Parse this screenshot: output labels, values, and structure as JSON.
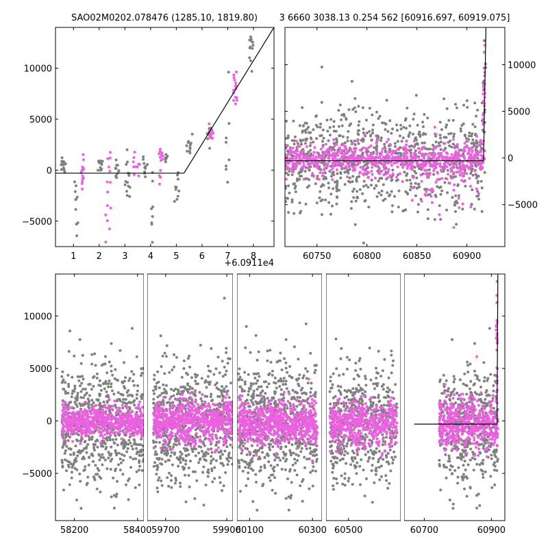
{
  "titles": {
    "left": "SAO02M0202.078476 (1285.10, 1819.80)",
    "right": "3 6660 3038.13 0.254 562 [60916.697, 60919.075]"
  },
  "colors": {
    "gray": "#808080",
    "magenta": "#ee5fe2",
    "model_line": "#000000"
  },
  "chart_data": [
    {
      "type": "scatter",
      "name_id": "top-left-zoom",
      "x_offset_label": "+6.0911e4",
      "xlim": [
        0.3,
        8.8
      ],
      "ylim": [
        -7500,
        14000
      ],
      "x_ticks": [
        1,
        2,
        3,
        4,
        5,
        6,
        7,
        8
      ],
      "y_ticks": [
        -5000,
        0,
        5000,
        10000
      ],
      "y_tick_labels": [
        "−5000",
        "0",
        "5000",
        "10000"
      ],
      "y_axis_side": "left",
      "model_line": [
        [
          0.3,
          -300
        ],
        [
          5.3,
          -300
        ],
        [
          8.8,
          14000
        ]
      ],
      "clusters": [
        {
          "x": 0.6,
          "w": 0.2,
          "ymean": 600,
          "sd": 500,
          "n": 14,
          "color": "gray"
        },
        {
          "x": 1.1,
          "w": 0.15,
          "ymean": -2500,
          "sd": 1500,
          "n": 10,
          "color": "gray"
        },
        {
          "x": 1.35,
          "w": 0.12,
          "ymean": -500,
          "sd": 1000,
          "n": 14,
          "color": "magenta"
        },
        {
          "x": 2.05,
          "w": 0.2,
          "ymean": 300,
          "sd": 400,
          "n": 10,
          "color": "gray"
        },
        {
          "x": 2.35,
          "w": 0.2,
          "ymean": -2000,
          "sd": 2500,
          "n": 14,
          "color": "magenta"
        },
        {
          "x": 2.7,
          "w": 0.15,
          "ymean": 0,
          "sd": 600,
          "n": 10,
          "color": "gray"
        },
        {
          "x": 3.1,
          "w": 0.2,
          "ymean": -1000,
          "sd": 1200,
          "n": 14,
          "color": "gray"
        },
        {
          "x": 3.45,
          "w": 0.25,
          "ymean": 500,
          "sd": 500,
          "n": 10,
          "color": "magenta"
        },
        {
          "x": 3.8,
          "w": 0.2,
          "ymean": 300,
          "sd": 500,
          "n": 10,
          "color": "gray"
        },
        {
          "x": 4.05,
          "w": 0.08,
          "ymean": -4000,
          "sd": 2000,
          "n": 8,
          "color": "gray"
        },
        {
          "x": 4.4,
          "w": 0.15,
          "ymean": 700,
          "sd": 900,
          "n": 14,
          "color": "magenta"
        },
        {
          "x": 4.6,
          "w": 0.15,
          "ymean": 1000,
          "sd": 500,
          "n": 8,
          "color": "gray"
        },
        {
          "x": 5.0,
          "w": 0.2,
          "ymean": -1800,
          "sd": 1200,
          "n": 10,
          "color": "gray"
        },
        {
          "x": 5.5,
          "w": 0.25,
          "ymean": 2300,
          "sd": 500,
          "n": 12,
          "color": "gray"
        },
        {
          "x": 6.35,
          "w": 0.18,
          "ymean": 3800,
          "sd": 500,
          "n": 12,
          "color": "magenta"
        },
        {
          "x": 6.3,
          "w": 0.2,
          "ymean": 3600,
          "sd": 600,
          "n": 8,
          "color": "gray"
        },
        {
          "x": 7.3,
          "w": 0.15,
          "ymean": 8300,
          "sd": 700,
          "n": 16,
          "color": "magenta"
        },
        {
          "x": 7.0,
          "w": 0.15,
          "ymean": 2000,
          "sd": 2000,
          "n": 8,
          "color": "gray"
        },
        {
          "x": 7.9,
          "w": 0.2,
          "ymean": 11800,
          "sd": 900,
          "n": 12,
          "color": "gray"
        }
      ]
    },
    {
      "type": "scatter",
      "name_id": "top-right-zoom",
      "xlim": [
        60718,
        60938
      ],
      "ylim": [
        -9500,
        14000
      ],
      "x_ticks": [
        60750,
        60800,
        60850,
        60900
      ],
      "y_ticks": [
        -5000,
        0,
        5000,
        10000
      ],
      "y_tick_labels": [
        "−5000",
        "0",
        "5000",
        "10000"
      ],
      "y_axis_side": "right",
      "model_line": [
        [
          60718,
          -300
        ],
        [
          60916.7,
          -300
        ],
        [
          60919.1,
          14000
        ]
      ],
      "clusters": [
        {
          "x": 60817,
          "w": 198,
          "ymean": -300,
          "sd": 2600,
          "n": 900,
          "color": "gray"
        },
        {
          "x": 60817,
          "w": 198,
          "ymean": -200,
          "sd": 800,
          "n": 700,
          "color": "magenta"
        },
        {
          "x": 60870,
          "w": 90,
          "ymean": -1500,
          "sd": 2200,
          "n": 80,
          "color": "magenta"
        },
        {
          "x": 60917,
          "w": 2,
          "ymean": 6000,
          "sd": 4000,
          "n": 30,
          "color": "magenta"
        },
        {
          "x": 60918,
          "w": 2,
          "ymean": 8000,
          "sd": 4000,
          "n": 12,
          "color": "gray"
        }
      ]
    },
    {
      "type": "scatter",
      "name_id": "bottom-full",
      "ylim": [
        -9500,
        14000
      ],
      "y_ticks": [
        -5000,
        0,
        5000,
        10000
      ],
      "y_tick_labels": [
        "−5000",
        "0",
        "5000",
        "10000"
      ],
      "y_axis_side": "left",
      "segments": [
        {
          "x_ticks": [
            58200,
            58400
          ],
          "xlim": [
            58140,
            58420
          ]
        },
        {
          "x_ticks": [
            59700,
            59900
          ],
          "xlim": [
            59640,
            59920
          ]
        },
        {
          "x_ticks": [
            60100,
            60300
          ],
          "xlim": [
            60060,
            60330
          ]
        },
        {
          "x_ticks": [
            60500
          ],
          "xlim": [
            60440,
            60640
          ]
        },
        {
          "x_ticks": [
            60700,
            60900
          ],
          "xlim": [
            60640,
            60940
          ]
        }
      ],
      "model_line": [
        [
          60670,
          -300
        ],
        [
          60916.7,
          -300
        ],
        [
          60919.1,
          14000
        ]
      ],
      "clusters": [
        {
          "x": 58290,
          "w": 260,
          "ymean": -500,
          "sd": 2800,
          "n": 700,
          "color": "gray"
        },
        {
          "x": 58290,
          "w": 260,
          "ymean": -100,
          "sd": 700,
          "n": 550,
          "color": "magenta"
        },
        {
          "x": 59790,
          "w": 260,
          "ymean": -300,
          "sd": 2800,
          "n": 700,
          "color": "gray"
        },
        {
          "x": 59790,
          "w": 260,
          "ymean": 0,
          "sd": 1000,
          "n": 650,
          "color": "magenta"
        },
        {
          "x": 60190,
          "w": 250,
          "ymean": -400,
          "sd": 2900,
          "n": 700,
          "color": "gray"
        },
        {
          "x": 60190,
          "w": 250,
          "ymean": -300,
          "sd": 1000,
          "n": 650,
          "color": "magenta"
        },
        {
          "x": 60540,
          "w": 180,
          "ymean": -300,
          "sd": 2700,
          "n": 550,
          "color": "gray"
        },
        {
          "x": 60540,
          "w": 180,
          "ymean": -300,
          "sd": 1000,
          "n": 500,
          "color": "magenta"
        },
        {
          "x": 60832,
          "w": 175,
          "ymean": -500,
          "sd": 2800,
          "n": 500,
          "color": "gray"
        },
        {
          "x": 60832,
          "w": 175,
          "ymean": -400,
          "sd": 1200,
          "n": 450,
          "color": "magenta"
        },
        {
          "x": 60916,
          "w": 4,
          "ymean": 7000,
          "sd": 4000,
          "n": 28,
          "color": "magenta"
        }
      ]
    }
  ]
}
